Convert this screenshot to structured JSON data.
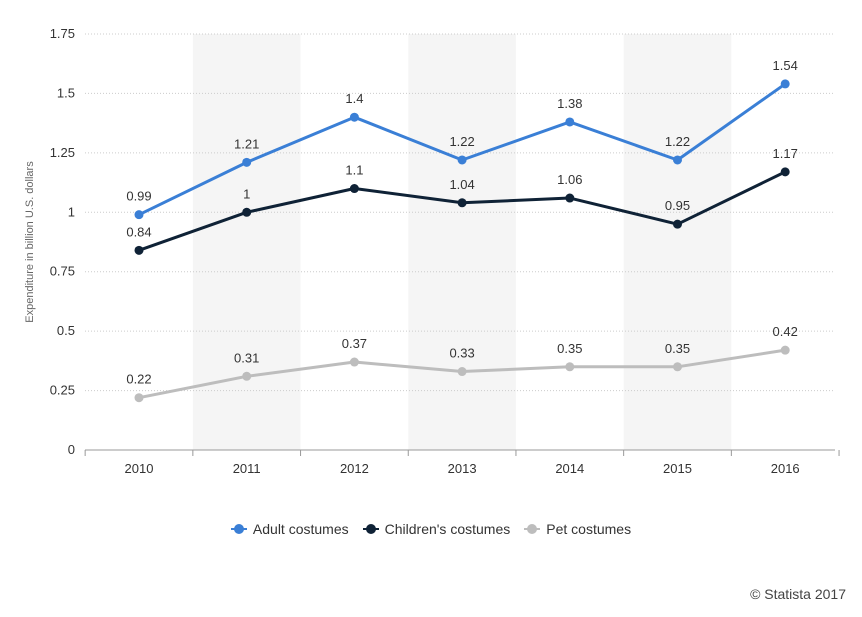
{
  "chart_data": {
    "type": "line",
    "title": "",
    "xlabel": "",
    "ylabel": "Expenditure in billion U.S. dollars",
    "categories": [
      "2010",
      "2011",
      "2012",
      "2013",
      "2014",
      "2015",
      "2016"
    ],
    "ylim": [
      0,
      1.75
    ],
    "yticks": [
      "0",
      "0.25",
      "0.5",
      "0.75",
      "1",
      "1.25",
      "1.5",
      "1.75"
    ],
    "grid": true,
    "legend_position": "bottom",
    "series": [
      {
        "name": "Adult costumes",
        "color": "#3a7fd6",
        "values": [
          0.99,
          1.21,
          1.4,
          1.22,
          1.38,
          1.22,
          1.54
        ],
        "labels": [
          "0.99",
          "1.21",
          "1.4",
          "1.22",
          "1.38",
          "1.22",
          "1.54"
        ]
      },
      {
        "name": "Children's costumes",
        "color": "#0f2236",
        "values": [
          0.84,
          1,
          1.1,
          1.04,
          1.06,
          0.95,
          1.17
        ],
        "labels": [
          "0.84",
          "1",
          "1.1",
          "1.04",
          "1.06",
          "0.95",
          "1.17"
        ]
      },
      {
        "name": "Pet costumes",
        "color": "#bdbdbd",
        "values": [
          0.22,
          0.31,
          0.37,
          0.33,
          0.35,
          0.35,
          0.42
        ],
        "labels": [
          "0.22",
          "0.31",
          "0.37",
          "0.33",
          "0.35",
          "0.35",
          "0.42"
        ]
      }
    ]
  },
  "credit": "© Statista 2017"
}
